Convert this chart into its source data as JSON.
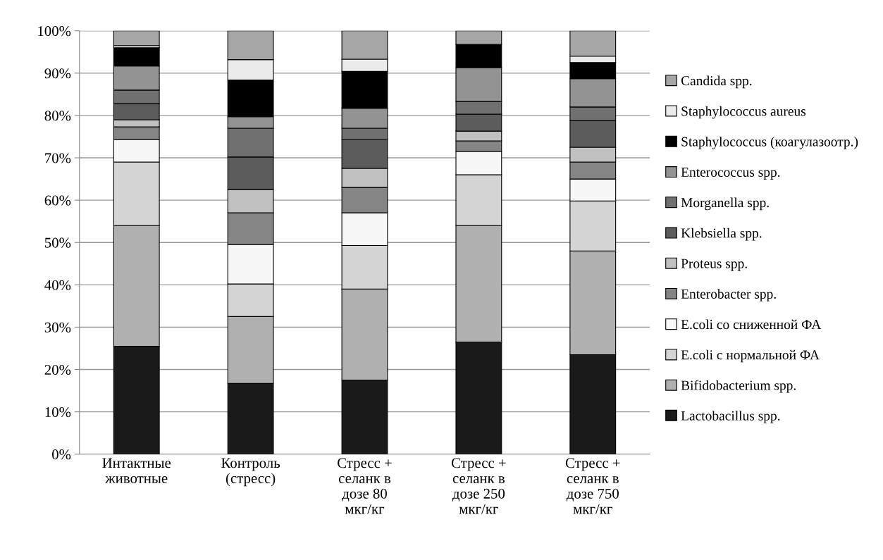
{
  "chart_data": {
    "type": "bar",
    "stacked": true,
    "categories": [
      "Интактные\nживотные",
      "Контроль\n(стресс)",
      "Стресс +\nселанк в\nдозе 80\nмкг/кг",
      "Стресс +\nселанк в\nдозе 250\nмкг/кг",
      "Стресс +\nселанк в\nдозе 750\nмкг/кг"
    ],
    "series": [
      {
        "name": "Lactobacillus spp.",
        "color": "#1a1a1a",
        "values": [
          25.5,
          16.7,
          17.5,
          26.5,
          23.5
        ]
      },
      {
        "name": "Bifidobacterium spp.",
        "color": "#b0b0b0",
        "values": [
          28.5,
          15.8,
          21.5,
          27.5,
          24.5
        ]
      },
      {
        "name": "E.coli с нормальной ФА",
        "color": "#d4d4d4",
        "values": [
          15,
          7.7,
          10.3,
          12,
          11.8
        ]
      },
      {
        "name": "E.coli со сниженной ФА",
        "color": "#f7f7f7",
        "values": [
          5.3,
          9.3,
          7.7,
          5.5,
          5.2
        ]
      },
      {
        "name": "Enterobacter spp.",
        "color": "#858585",
        "values": [
          3,
          7.5,
          6,
          2.5,
          4
        ]
      },
      {
        "name": "Proteus spp.",
        "color": "#c0c0c0",
        "values": [
          1.7,
          5.5,
          4.5,
          2.3,
          3.5
        ]
      },
      {
        "name": "Klebsiella spp.",
        "color": "#5c5c5c",
        "values": [
          3.8,
          7.7,
          6.8,
          4,
          6.3
        ]
      },
      {
        "name": "Morganella spp.",
        "color": "#707070",
        "values": [
          3.2,
          6.8,
          2.7,
          3,
          3.2
        ]
      },
      {
        "name": "Enterococcus spp.",
        "color": "#939393",
        "values": [
          5.7,
          2.7,
          4.7,
          8,
          6.7
        ]
      },
      {
        "name": "Staphylococcus (коагулазоотр.)",
        "color": "#000000",
        "values": [
          4.3,
          8.7,
          8.7,
          5.5,
          3.8
        ]
      },
      {
        "name": "Staphylococcus aureus",
        "color": "#ebebeb",
        "values": [
          0.5,
          4.8,
          2.9,
          0,
          1.5
        ]
      },
      {
        "name": "Candida spp.",
        "color": "#a6a6a6",
        "values": [
          3.5,
          6.8,
          6.7,
          3.2,
          6
        ]
      }
    ],
    "ylim": [
      0,
      100
    ],
    "yticks": [
      {
        "value": 0,
        "label": "0%"
      },
      {
        "value": 10,
        "label": "10%"
      },
      {
        "value": 20,
        "label": "20%"
      },
      {
        "value": 30,
        "label": "30%"
      },
      {
        "value": 40,
        "label": "40%"
      },
      {
        "value": 50,
        "label": "50%"
      },
      {
        "value": 60,
        "label": "60%"
      },
      {
        "value": 70,
        "label": "70%"
      },
      {
        "value": 80,
        "label": "80%"
      },
      {
        "value": 90,
        "label": "90%"
      },
      {
        "value": 100,
        "label": "100%"
      }
    ],
    "grid": "y",
    "legend": "right"
  }
}
